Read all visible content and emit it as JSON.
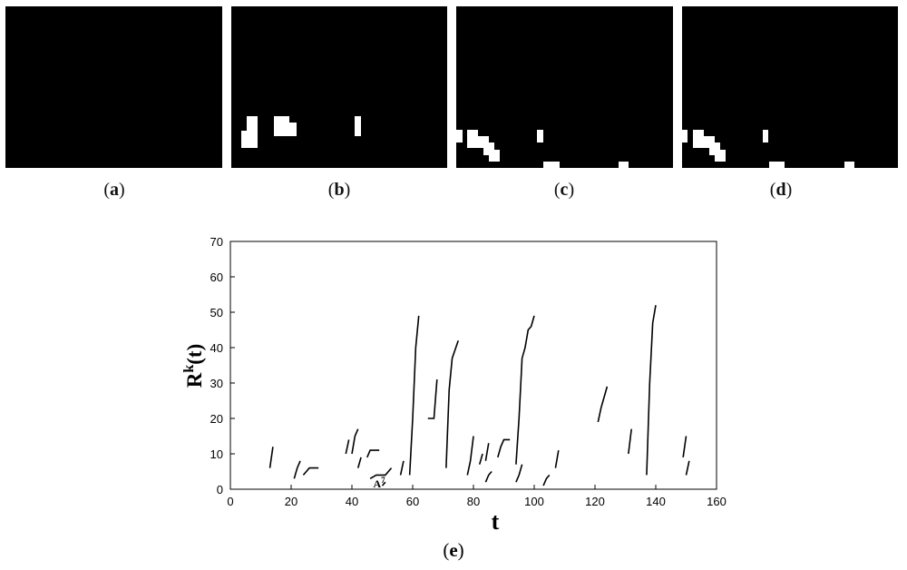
{
  "panels": [
    {
      "id": "a",
      "label": "a"
    },
    {
      "id": "b",
      "label": "b"
    },
    {
      "id": "c",
      "label": "c"
    },
    {
      "id": "d",
      "label": "d"
    }
  ],
  "paren_open": "(",
  "paren_close": ")",
  "chart_label": "e",
  "chart_data": {
    "type": "line",
    "xlabel": "t",
    "ylabel_main": "R",
    "ylabel_sup": "k",
    "ylabel_suffix": "(t)",
    "xlim": [
      0,
      160
    ],
    "ylim": [
      0,
      70
    ],
    "xticks": [
      0,
      20,
      40,
      60,
      80,
      100,
      120,
      140,
      160
    ],
    "yticks": [
      0,
      10,
      20,
      30,
      40,
      50,
      60,
      70
    ],
    "annotation": {
      "text": "A",
      "sup": "7",
      "x": 50,
      "y": 1
    },
    "segments": [
      {
        "x": [
          13,
          14
        ],
        "y": [
          6,
          12
        ]
      },
      {
        "x": [
          21,
          22,
          23
        ],
        "y": [
          3,
          6,
          8
        ]
      },
      {
        "x": [
          24,
          25,
          26,
          29
        ],
        "y": [
          4,
          5,
          6,
          6
        ]
      },
      {
        "x": [
          38,
          39
        ],
        "y": [
          10,
          14
        ]
      },
      {
        "x": [
          40,
          41,
          42
        ],
        "y": [
          10,
          15,
          17
        ]
      },
      {
        "x": [
          42,
          43
        ],
        "y": [
          6,
          9
        ]
      },
      {
        "x": [
          45,
          46,
          49
        ],
        "y": [
          9,
          11,
          11
        ]
      },
      {
        "x": [
          46,
          48,
          51,
          53
        ],
        "y": [
          3,
          4,
          4,
          6
        ]
      },
      {
        "x": [
          50,
          51
        ],
        "y": [
          1,
          2
        ]
      },
      {
        "x": [
          56,
          57
        ],
        "y": [
          4,
          8
        ]
      },
      {
        "x": [
          59,
          60,
          61,
          62
        ],
        "y": [
          4,
          20,
          40,
          49
        ]
      },
      {
        "x": [
          65,
          67,
          68
        ],
        "y": [
          20,
          20,
          31
        ]
      },
      {
        "x": [
          71,
          72,
          73,
          75
        ],
        "y": [
          6,
          28,
          37,
          42
        ]
      },
      {
        "x": [
          78,
          79,
          80
        ],
        "y": [
          4,
          8,
          15
        ]
      },
      {
        "x": [
          82,
          83
        ],
        "y": [
          7,
          10
        ]
      },
      {
        "x": [
          84,
          85
        ],
        "y": [
          8,
          13
        ]
      },
      {
        "x": [
          84,
          85,
          86
        ],
        "y": [
          2,
          4,
          5
        ]
      },
      {
        "x": [
          88,
          89,
          90,
          92
        ],
        "y": [
          9,
          12,
          14,
          14
        ]
      },
      {
        "x": [
          94,
          95,
          96,
          97,
          98,
          99,
          100
        ],
        "y": [
          7,
          20,
          37,
          40,
          45,
          46,
          49
        ]
      },
      {
        "x": [
          94,
          95,
          96
        ],
        "y": [
          2,
          4,
          7
        ]
      },
      {
        "x": [
          103,
          104,
          105
        ],
        "y": [
          1,
          3,
          4
        ]
      },
      {
        "x": [
          107,
          108
        ],
        "y": [
          6,
          11
        ]
      },
      {
        "x": [
          121,
          122,
          123,
          124
        ],
        "y": [
          19,
          23,
          26,
          29
        ]
      },
      {
        "x": [
          131,
          132
        ],
        "y": [
          10,
          17
        ]
      },
      {
        "x": [
          137,
          138,
          139,
          140
        ],
        "y": [
          4,
          30,
          47,
          52
        ]
      },
      {
        "x": [
          149,
          150
        ],
        "y": [
          9,
          15
        ]
      },
      {
        "x": [
          150,
          151
        ],
        "y": [
          4,
          8
        ]
      }
    ]
  }
}
